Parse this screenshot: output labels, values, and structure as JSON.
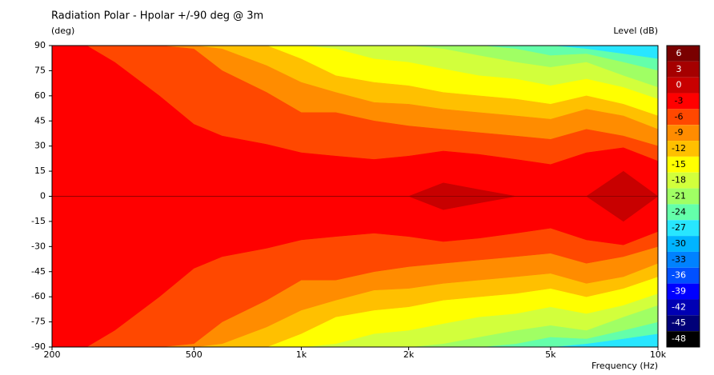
{
  "chart_data": {
    "type": "contour",
    "title": "Radiation Polar - Hpolar +/-90 deg @ 3m",
    "y_label": "(deg)",
    "colorbar_label": "Level  (dB)",
    "x_label": "Frequency  (Hz)",
    "x_scale": "log",
    "x": [
      200,
      250,
      300,
      400,
      500,
      600,
      800,
      1000,
      1250,
      1600,
      2000,
      2500,
      3150,
      4000,
      5000,
      6300,
      8000,
      10000
    ],
    "xlim": [
      200,
      10000
    ],
    "xticks": [
      200,
      500,
      {
        "value": 1000,
        "label": "1k"
      },
      {
        "value": 2000,
        "label": "2k"
      },
      {
        "value": 5000,
        "label": "5k"
      },
      {
        "value": 10000,
        "label": "10k"
      }
    ],
    "ylim": [
      -90,
      90
    ],
    "yticks": [
      90,
      75,
      60,
      45,
      30,
      15,
      0,
      -15,
      -30,
      -45,
      -60,
      -75,
      -90
    ],
    "colorbar": {
      "levels": [
        6,
        3,
        0,
        -3,
        -6,
        -9,
        -12,
        -15,
        -18,
        -21,
        -24,
        -27,
        -30,
        -33,
        -36,
        -39,
        -42,
        -45,
        -48
      ],
      "colors": [
        "#7a0000",
        "#a50000",
        "#c80000",
        "#ff0000",
        "#ff4800",
        "#ff8c00",
        "#ffc000",
        "#ffff00",
        "#d2ff3c",
        "#a0ff64",
        "#64ffaa",
        "#28e6ff",
        "#00b4ff",
        "#0082ff",
        "#0050ff",
        "#0000ff",
        "#0000b4",
        "#000078",
        "#000000"
      ]
    },
    "contours": [
      {
        "level": -24,
        "values": [
          90,
          90,
          90,
          90,
          90,
          90,
          90,
          90,
          90,
          90,
          90,
          90,
          90,
          90,
          90,
          88,
          85,
          82
        ]
      },
      {
        "level": -21,
        "values": [
          90,
          90,
          90,
          90,
          90,
          90,
          90,
          90,
          90,
          90,
          90,
          90,
          90,
          88,
          84,
          85,
          80,
          75
        ]
      },
      {
        "level": -18,
        "values": [
          90,
          90,
          90,
          90,
          90,
          90,
          90,
          90,
          90,
          90,
          90,
          88,
          84,
          80,
          77,
          80,
          72,
          65
        ]
      },
      {
        "level": -15,
        "values": [
          90,
          90,
          90,
          90,
          90,
          90,
          90,
          90,
          88,
          82,
          80,
          76,
          72,
          70,
          66,
          70,
          65,
          58
        ]
      },
      {
        "level": -12,
        "values": [
          90,
          90,
          90,
          90,
          90,
          90,
          90,
          82,
          72,
          68,
          66,
          62,
          60,
          58,
          55,
          60,
          55,
          48
        ]
      },
      {
        "level": -9,
        "values": [
          90,
          90,
          90,
          90,
          90,
          88,
          78,
          68,
          62,
          56,
          55,
          52,
          50,
          48,
          46,
          52,
          48,
          40
        ]
      },
      {
        "level": -6,
        "values": [
          90,
          90,
          90,
          90,
          88,
          75,
          62,
          50,
          50,
          45,
          42,
          40,
          38,
          36,
          34,
          40,
          36,
          30
        ]
      },
      {
        "level": -3,
        "values": [
          90,
          90,
          80,
          60,
          43,
          36,
          31,
          26,
          24,
          22,
          24,
          27,
          25,
          22,
          19,
          26,
          29,
          21
        ]
      },
      {
        "level": 0,
        "values": [
          0,
          0,
          0,
          0,
          0,
          0,
          0,
          0,
          0,
          0,
          0,
          8,
          4,
          0,
          0,
          0,
          15,
          0
        ]
      }
    ]
  }
}
